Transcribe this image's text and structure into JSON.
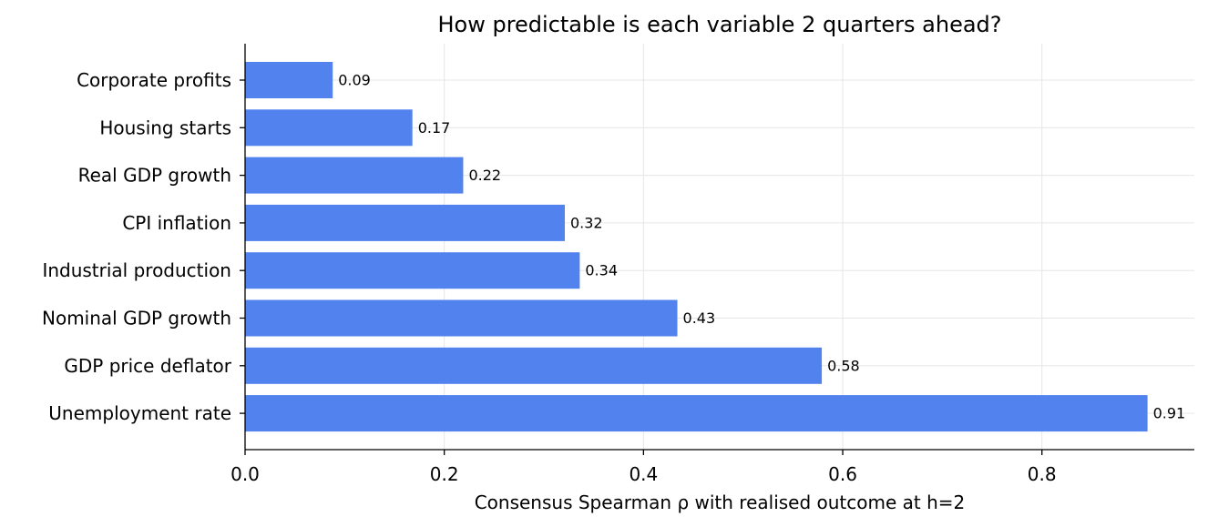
{
  "chart_data": {
    "type": "bar",
    "orientation": "horizontal",
    "title": "How predictable is each variable 2 quarters ahead?",
    "xlabel": "Consensus Spearman ρ with realised outcome at h=2",
    "ylabel": "",
    "categories": [
      "Corporate profits",
      "Housing starts",
      "Real GDP growth",
      "CPI inflation",
      "Industrial production",
      "Nominal GDP growth",
      "GDP price deflator",
      "Unemployment rate"
    ],
    "values": [
      0.088,
      0.168,
      0.219,
      0.321,
      0.336,
      0.434,
      0.579,
      0.906
    ],
    "value_labels": [
      "0.09",
      "0.17",
      "0.22",
      "0.32",
      "0.34",
      "0.43",
      "0.58",
      "0.91"
    ],
    "xlim": [
      0,
      0.953
    ],
    "xticks": [
      0.0,
      0.2,
      0.4,
      0.6,
      0.8
    ],
    "xtick_labels": [
      "0.0",
      "0.2",
      "0.4",
      "0.6",
      "0.8"
    ],
    "bar_color": "#5282ee",
    "grid": true
  }
}
